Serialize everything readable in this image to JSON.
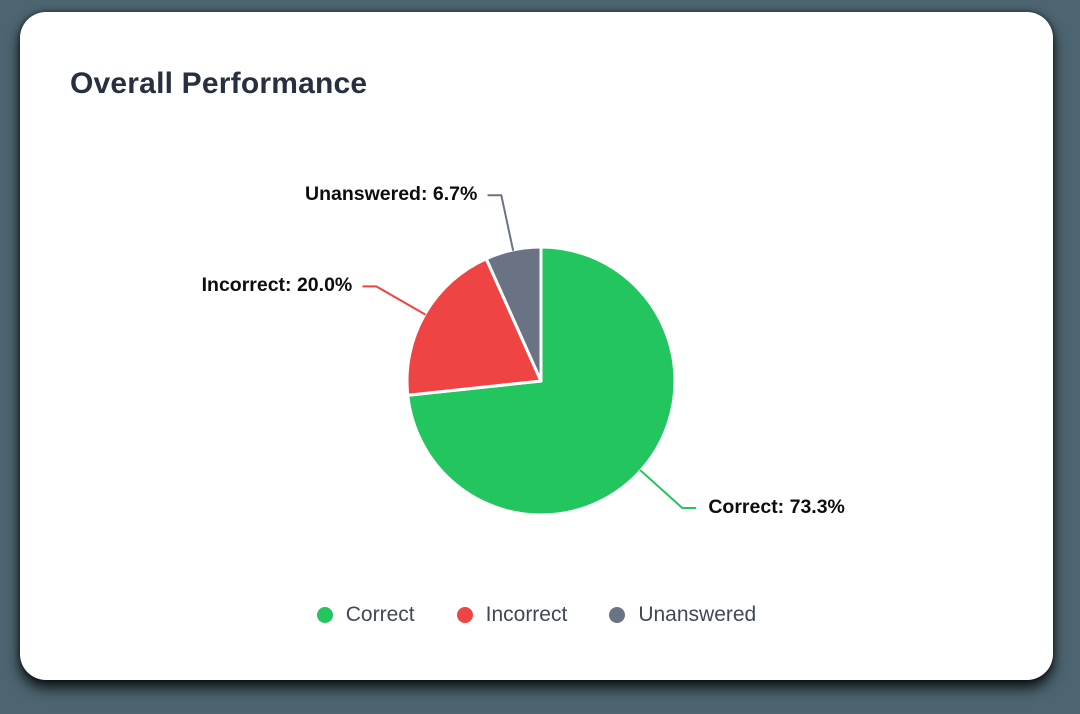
{
  "page": {
    "background_color": "#4d6570",
    "card_color": "#ffffff"
  },
  "card": {
    "title": "Overall Performance"
  },
  "chart_data": {
    "type": "pie",
    "title": "Overall Performance",
    "start_angle_deg": 0,
    "direction": "clockwise",
    "slices": [
      {
        "label": "Correct",
        "value": 73.3,
        "color": "#22c55e",
        "callout": "Correct: 73.3%"
      },
      {
        "label": "Incorrect",
        "value": 20.0,
        "color": "#ef4444",
        "callout": "Incorrect: 20.0%"
      },
      {
        "label": "Unanswered",
        "value": 6.7,
        "color": "#697384",
        "callout": "Unanswered: 6.7%"
      }
    ],
    "legend": [
      "Correct",
      "Incorrect",
      "Unanswered"
    ],
    "legend_position": "bottom",
    "slice_border_color": "#ffffff"
  }
}
